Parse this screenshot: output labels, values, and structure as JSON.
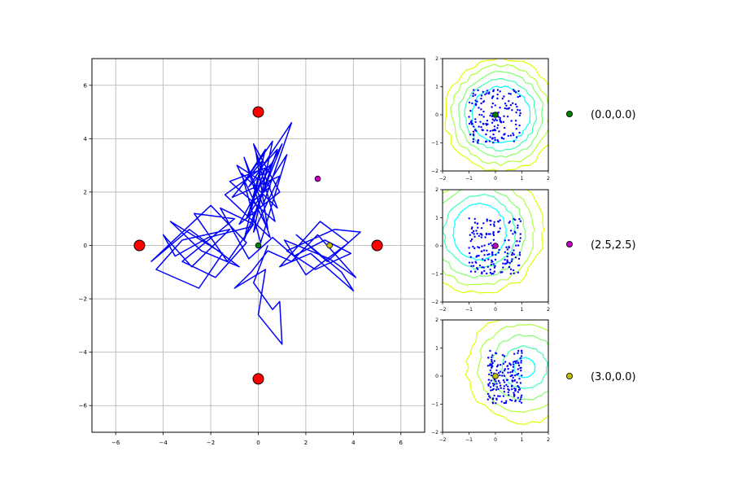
{
  "chart_data": [
    {
      "type": "line",
      "title": "",
      "xlabel": "",
      "ylabel": "",
      "xlim": [
        -7,
        7
      ],
      "ylim": [
        -7,
        7
      ],
      "grid": true,
      "x_ticks": [
        "−6",
        "−4",
        "−2",
        "0",
        "2",
        "4",
        "6"
      ],
      "y_ticks": [
        "−6",
        "−4",
        "−2",
        "0",
        "2",
        "4",
        "6"
      ],
      "trajectory_color": "#0000ff",
      "trajectory": [
        [
          -0.4,
          1.2
        ],
        [
          0.3,
          3.6
        ],
        [
          -0.8,
          2.1
        ],
        [
          0.6,
          3.9
        ],
        [
          -0.2,
          0.5
        ],
        [
          0.9,
          2.6
        ],
        [
          -1.1,
          1.8
        ],
        [
          0.2,
          3.2
        ],
        [
          -0.6,
          0.2
        ],
        [
          1.0,
          3.8
        ],
        [
          -0.3,
          1.6
        ],
        [
          0.5,
          2.2
        ],
        [
          -0.9,
          3.0
        ],
        [
          0.4,
          0.6
        ],
        [
          -0.1,
          3.5
        ],
        [
          0.8,
          1.4
        ],
        [
          -0.7,
          2.7
        ],
        [
          0.1,
          0.1
        ],
        [
          1.2,
          3.4
        ],
        [
          -0.5,
          1.0
        ],
        [
          0.3,
          2.9
        ],
        [
          -1.2,
          2.4
        ],
        [
          0.7,
          0.9
        ],
        [
          -0.2,
          3.8
        ],
        [
          0.9,
          2.0
        ],
        [
          -0.8,
          0.8
        ],
        [
          0.6,
          3.1
        ],
        [
          -0.4,
          2.2
        ],
        [
          1.4,
          4.6
        ],
        [
          0.2,
          1.5
        ],
        [
          -0.6,
          3.3
        ],
        [
          0.5,
          0.3
        ],
        [
          -1.4,
          1.9
        ],
        [
          0.0,
          2.8
        ],
        [
          0.8,
          3.6
        ],
        [
          -0.3,
          0.7
        ],
        [
          -2.1,
          0.3
        ],
        [
          -3.5,
          -0.4
        ],
        [
          -4.0,
          0.4
        ],
        [
          -2.8,
          -0.8
        ],
        [
          -1.2,
          0.6
        ],
        [
          -3.2,
          0.2
        ],
        [
          -4.3,
          -0.9
        ],
        [
          -2.5,
          -1.6
        ],
        [
          -1.5,
          -0.3
        ],
        [
          -3.7,
          0.9
        ],
        [
          -2.4,
          -0.2
        ],
        [
          -0.8,
          -0.8
        ],
        [
          -2.9,
          0.6
        ],
        [
          -4.5,
          -0.6
        ],
        [
          -2.0,
          1.5
        ],
        [
          -0.5,
          0.1
        ],
        [
          -1.8,
          -1.2
        ],
        [
          -3.2,
          -0.6
        ],
        [
          -1.0,
          1.0
        ],
        [
          -2.7,
          1.2
        ],
        [
          -1.3,
          -0.6
        ],
        [
          -0.2,
          0.8
        ],
        [
          -1.6,
          1.4
        ],
        [
          -0.4,
          -0.5
        ],
        [
          0.6,
          0.3
        ],
        [
          1.5,
          -0.4
        ],
        [
          2.8,
          0.2
        ],
        [
          3.9,
          -0.3
        ],
        [
          2.4,
          -0.9
        ],
        [
          1.2,
          -0.2
        ],
        [
          3.2,
          0.6
        ],
        [
          4.3,
          0.5
        ],
        [
          2.9,
          -0.6
        ],
        [
          1.6,
          0.4
        ],
        [
          3.5,
          -1.0
        ],
        [
          4.0,
          -1.7
        ],
        [
          2.2,
          -0.3
        ],
        [
          0.9,
          -0.8
        ],
        [
          2.6,
          0.9
        ],
        [
          3.8,
          0.1
        ],
        [
          2.0,
          -1.1
        ],
        [
          1.1,
          0.2
        ],
        [
          3.0,
          -0.5
        ],
        [
          4.1,
          -1.2
        ],
        [
          2.5,
          0.4
        ],
        [
          1.4,
          -0.6
        ],
        [
          0.4,
          -0.2
        ],
        [
          -0.3,
          -1.0
        ],
        [
          -1.0,
          -1.6
        ],
        [
          0.3,
          -0.9
        ],
        [
          0.0,
          -2.6
        ],
        [
          1.0,
          -3.7
        ],
        [
          0.9,
          -2.1
        ],
        [
          0.6,
          -2.4
        ],
        [
          -0.2,
          -1.4
        ],
        [
          0.4,
          0.0
        ]
      ],
      "series": [
        {
          "name": "(0.0,0.0)",
          "x": 0.0,
          "y": 0.0,
          "color": "#008000"
        },
        {
          "name": "(2.5,2.5)",
          "x": 2.5,
          "y": 2.5,
          "color": "#bf00bf"
        },
        {
          "name": "(3.0,0.0)",
          "x": 3.0,
          "y": 0.0,
          "color": "#bfbf00"
        }
      ],
      "fixed_points": {
        "color": "#ff0000",
        "points": [
          [
            0,
            5
          ],
          [
            -5,
            0
          ],
          [
            5,
            0
          ],
          [
            0,
            -5
          ]
        ]
      }
    },
    {
      "type": "scatter",
      "xlim": [
        -2,
        2
      ],
      "ylim": [
        -2,
        2
      ],
      "x_ticks": [
        "−2",
        "−1",
        "0",
        "1",
        "2"
      ],
      "y_ticks": [
        "−2",
        "−1",
        "0",
        "1",
        "2"
      ],
      "contour_colormap": [
        "#00ffff",
        "#40ffb0",
        "#80ff70",
        "#b0ff40",
        "#e0ff00"
      ],
      "center": {
        "name": "(0.0,0.0)",
        "x": 0.0,
        "y": 0.0,
        "color": "#008000"
      },
      "samples_region": {
        "x": [
          -1.0,
          1.0
        ],
        "y": [
          -1.0,
          0.9
        ]
      }
    },
    {
      "type": "scatter",
      "xlim": [
        -2,
        2
      ],
      "ylim": [
        -2,
        2
      ],
      "x_ticks": [
        "−2",
        "−1",
        "0",
        "1",
        "2"
      ],
      "y_ticks": [
        "−2",
        "−1",
        "0",
        "1",
        "2"
      ],
      "contour_colormap": [
        "#00ffff",
        "#40ffb0",
        "#80ff70",
        "#b0ff40",
        "#e0ff00"
      ],
      "center": {
        "name": "(2.5,2.5)",
        "x": 0.0,
        "y": 0.0,
        "color": "#bf00bf"
      },
      "samples_region": {
        "x": [
          -1.0,
          0.95
        ],
        "y": [
          -1.0,
          1.0
        ]
      }
    },
    {
      "type": "scatter",
      "xlim": [
        -2,
        2
      ],
      "ylim": [
        -2,
        2
      ],
      "x_ticks": [
        "−2",
        "−1",
        "0",
        "1",
        "2"
      ],
      "y_ticks": [
        "−2",
        "−1",
        "0",
        "1",
        "2"
      ],
      "contour_colormap": [
        "#00ffff",
        "#40ffb0",
        "#80ff70",
        "#b0ff40",
        "#e0ff00"
      ],
      "center": {
        "name": "(3.0,0.0)",
        "x": 0.0,
        "y": 0.0,
        "color": "#bfbf00"
      },
      "samples_region": {
        "x": [
          -0.3,
          1.0
        ],
        "y": [
          -1.0,
          0.95
        ]
      }
    }
  ]
}
